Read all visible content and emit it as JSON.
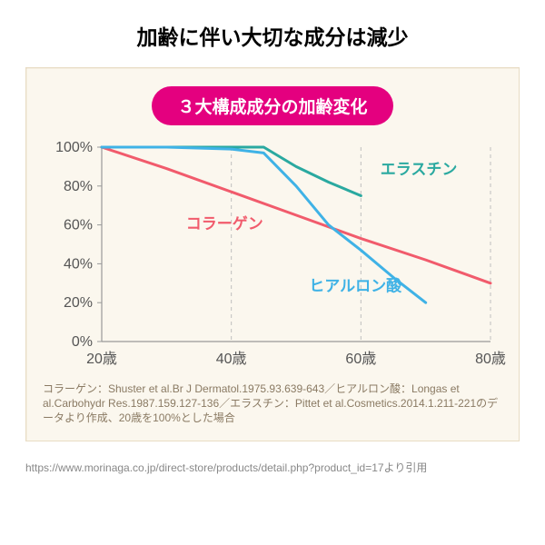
{
  "title": "加齢に伴い大切な成分は減少",
  "subtitle": "３大構成成分の加齢変化",
  "subtitle_style": {
    "bg": "#e4007f",
    "fg": "#ffffff"
  },
  "card": {
    "bg": "#fbf7ee",
    "border": "#e8dcc4"
  },
  "chart": {
    "type": "line",
    "x_domain": [
      20,
      80
    ],
    "y_domain": [
      0,
      100
    ],
    "x_ticks": [
      {
        "v": 20,
        "label": "20歳"
      },
      {
        "v": 40,
        "label": "40歳"
      },
      {
        "v": 60,
        "label": "60歳"
      },
      {
        "v": 80,
        "label": "80歳"
      }
    ],
    "y_ticks": [
      {
        "v": 0,
        "label": "0%"
      },
      {
        "v": 20,
        "label": "20%"
      },
      {
        "v": 40,
        "label": "40%"
      },
      {
        "v": 60,
        "label": "60%"
      },
      {
        "v": 80,
        "label": "80%"
      },
      {
        "v": 100,
        "label": "100%"
      }
    ],
    "axis_color": "#999999",
    "grid_color": "#bfbfbf",
    "tick_font_color": "#555555",
    "tick_fontsize": 16,
    "line_width": 3,
    "series": [
      {
        "key": "elastin",
        "label": "エラスチン",
        "color": "#2aa9a0",
        "points": [
          [
            20,
            100
          ],
          [
            30,
            100
          ],
          [
            40,
            100
          ],
          [
            45,
            100
          ],
          [
            50,
            90
          ],
          [
            55,
            82
          ],
          [
            60,
            75
          ]
        ],
        "label_pos": {
          "x": 63,
          "y": 86
        }
      },
      {
        "key": "collagen",
        "label": "コラーゲン",
        "color": "#f15b6c",
        "points": [
          [
            20,
            100
          ],
          [
            30,
            89
          ],
          [
            40,
            77
          ],
          [
            50,
            65
          ],
          [
            60,
            53
          ],
          [
            70,
            42
          ],
          [
            80,
            30
          ]
        ],
        "label_pos": {
          "x": 33,
          "y": 58
        }
      },
      {
        "key": "hyaluronic",
        "label": "ヒアルロン酸",
        "color": "#3fb2e6",
        "points": [
          [
            20,
            100
          ],
          [
            30,
            100
          ],
          [
            40,
            99
          ],
          [
            45,
            97
          ],
          [
            50,
            80
          ],
          [
            55,
            60
          ],
          [
            60,
            47
          ],
          [
            65,
            33
          ],
          [
            70,
            20
          ]
        ],
        "label_pos": {
          "x": 52,
          "y": 26
        }
      }
    ]
  },
  "references": "コラーゲン：Shuster et al.Br J Dermatol.1975.93.639-643／ヒアルロン酸：Longas et al.Carbohydr Res.1987.159.127-136／エラスチン：Pittet et al.Cosmetics.2014.1.211-221のデータより作成、20歳を100%とした場合",
  "references_color": "#8a7a63",
  "source": "https://www.morinaga.co.jp/direct-store/products/detail.php?product_id=17より引用"
}
